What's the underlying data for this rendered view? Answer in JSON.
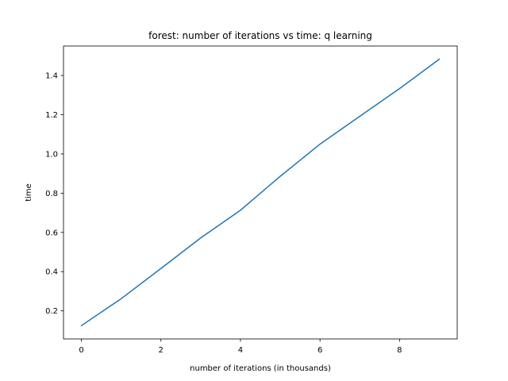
{
  "chart_data": {
    "type": "line",
    "title": "forest: number of iterations vs time: q learning",
    "xlabel": "number of iterations (in thousands)",
    "ylabel": "time",
    "xlim": [
      -0.45,
      9.45
    ],
    "ylim": [
      0.057,
      1.55
    ],
    "xticks": [
      0,
      2,
      4,
      6,
      8
    ],
    "xtick_labels": [
      "0",
      "2",
      "4",
      "6",
      "8"
    ],
    "yticks": [
      0.2,
      0.4,
      0.6,
      0.8,
      1.0,
      1.2,
      1.4
    ],
    "ytick_labels": [
      "0.2",
      "0.4",
      "0.6",
      "0.8",
      "1.0",
      "1.2",
      "1.4"
    ],
    "grid": false,
    "legend": "none",
    "series": [
      {
        "color": "#1f77b4",
        "x": [
          0,
          1,
          2,
          3,
          4,
          5,
          6,
          7,
          8,
          9
        ],
        "y": [
          0.125,
          0.262,
          0.416,
          0.572,
          0.713,
          0.886,
          1.05,
          1.192,
          1.333,
          1.483
        ]
      }
    ]
  }
}
